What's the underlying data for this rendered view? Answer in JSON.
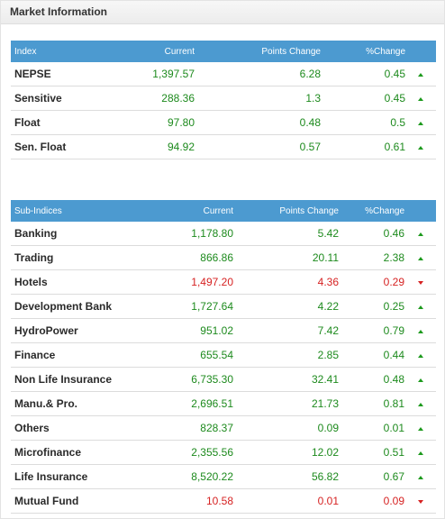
{
  "panel": {
    "title": "Market Information"
  },
  "index_table": {
    "headers": {
      "name": "Index",
      "current": "Current",
      "points_change": "Points Change",
      "percent_change": "%Change"
    },
    "rows": [
      {
        "name": "NEPSE",
        "current": "1,397.57",
        "points_change": "6.28",
        "percent_change": "0.45",
        "direction": "up"
      },
      {
        "name": "Sensitive",
        "current": "288.36",
        "points_change": "1.3",
        "percent_change": "0.45",
        "direction": "up"
      },
      {
        "name": "Float",
        "current": "97.80",
        "points_change": "0.48",
        "percent_change": "0.5",
        "direction": "up"
      },
      {
        "name": "Sen. Float",
        "current": "94.92",
        "points_change": "0.57",
        "percent_change": "0.61",
        "direction": "up"
      }
    ]
  },
  "sub_indices_table": {
    "headers": {
      "name": "Sub-Indices",
      "current": "Current",
      "points_change": "Points Change",
      "percent_change": "%Change"
    },
    "rows": [
      {
        "name": "Banking",
        "current": "1,178.80",
        "points_change": "5.42",
        "percent_change": "0.46",
        "direction": "up"
      },
      {
        "name": "Trading",
        "current": "866.86",
        "points_change": "20.11",
        "percent_change": "2.38",
        "direction": "up"
      },
      {
        "name": "Hotels",
        "current": "1,497.20",
        "points_change": "4.36",
        "percent_change": "0.29",
        "direction": "down"
      },
      {
        "name": "Development Bank",
        "current": "1,727.64",
        "points_change": "4.22",
        "percent_change": "0.25",
        "direction": "up"
      },
      {
        "name": "HydroPower",
        "current": "951.02",
        "points_change": "7.42",
        "percent_change": "0.79",
        "direction": "up"
      },
      {
        "name": "Finance",
        "current": "655.54",
        "points_change": "2.85",
        "percent_change": "0.44",
        "direction": "up"
      },
      {
        "name": "Non Life Insurance",
        "current": "6,735.30",
        "points_change": "32.41",
        "percent_change": "0.48",
        "direction": "up"
      },
      {
        "name": "Manu.& Pro.",
        "current": "2,696.51",
        "points_change": "21.73",
        "percent_change": "0.81",
        "direction": "up"
      },
      {
        "name": "Others",
        "current": "828.37",
        "points_change": "0.09",
        "percent_change": "0.01",
        "direction": "up"
      },
      {
        "name": "Microfinance",
        "current": "2,355.56",
        "points_change": "12.02",
        "percent_change": "0.51",
        "direction": "up"
      },
      {
        "name": "Life Insurance",
        "current": "8,520.22",
        "points_change": "56.82",
        "percent_change": "0.67",
        "direction": "up"
      },
      {
        "name": "Mutual Fund",
        "current": "10.58",
        "points_change": "0.01",
        "percent_change": "0.09",
        "direction": "down"
      }
    ]
  },
  "colors": {
    "header_bg": "#4c9ad0",
    "positive": "#1d8a1d",
    "negative": "#d62222"
  },
  "icons": {
    "up": "triangle-up-icon",
    "down": "triangle-down-icon"
  }
}
